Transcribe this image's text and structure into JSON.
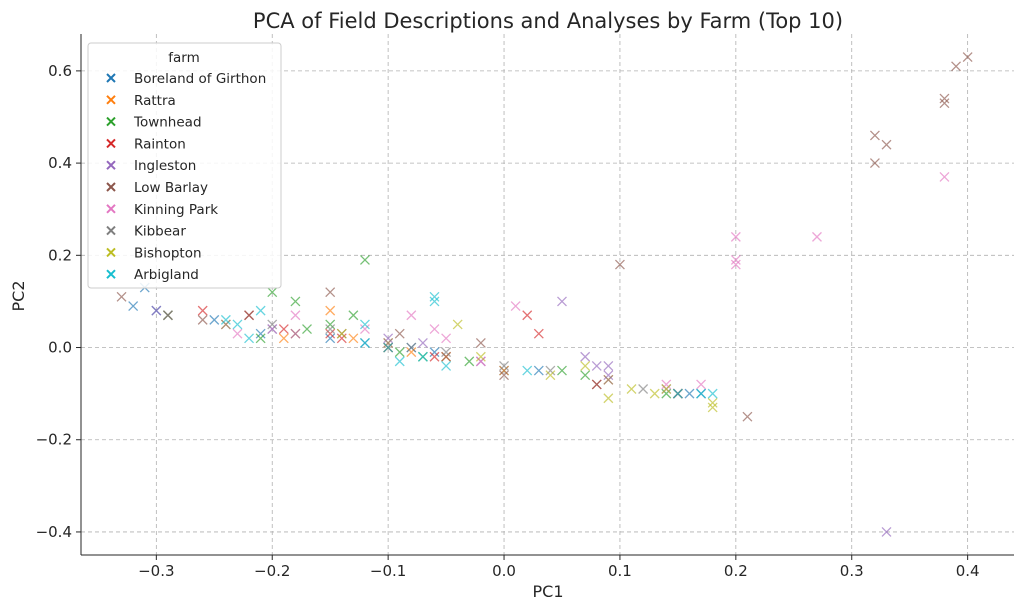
{
  "chart_data": {
    "type": "scatter",
    "title": "PCA of Field Descriptions and Analyses by Farm (Top 10)",
    "xlabel": "PC1",
    "ylabel": "PC2",
    "xlim": [
      -0.365,
      0.44
    ],
    "ylim": [
      -0.45,
      0.68
    ],
    "xticks": [
      -0.3,
      -0.2,
      -0.1,
      0.0,
      0.1,
      0.2,
      0.3,
      0.4
    ],
    "xtick_labels": [
      "−0.3",
      "−0.2",
      "−0.1",
      "0.0",
      "0.1",
      "0.2",
      "0.3",
      "0.4"
    ],
    "yticks": [
      -0.4,
      -0.2,
      0.0,
      0.2,
      0.4,
      0.6
    ],
    "ytick_labels": [
      "−0.4",
      "−0.2",
      "0.0",
      "0.2",
      "0.4",
      "0.6"
    ],
    "grid": true,
    "marker": "x",
    "legend": {
      "title": "farm",
      "placement": "upper-left"
    },
    "series": [
      {
        "name": "Boreland of Girthon",
        "color": "#1f77b4",
        "points": [
          [
            -0.31,
            0.13
          ],
          [
            -0.32,
            0.09
          ],
          [
            -0.3,
            0.08
          ],
          [
            -0.2,
            0.04
          ],
          [
            -0.15,
            0.02
          ],
          [
            -0.12,
            0.01
          ],
          [
            -0.08,
            0.0
          ],
          [
            -0.06,
            -0.01
          ],
          [
            0.0,
            -0.05
          ],
          [
            0.03,
            -0.05
          ],
          [
            0.15,
            -0.1
          ],
          [
            0.16,
            -0.1
          ],
          [
            0.17,
            -0.1
          ],
          [
            -0.25,
            0.06
          ],
          [
            -0.21,
            0.03
          ]
        ]
      },
      {
        "name": "Rattra",
        "color": "#ff7f0e",
        "points": [
          [
            -0.19,
            0.02
          ],
          [
            -0.15,
            0.08
          ],
          [
            -0.13,
            0.02
          ],
          [
            -0.1,
            0.01
          ],
          [
            -0.05,
            -0.02
          ],
          [
            0.0,
            -0.05
          ],
          [
            0.09,
            -0.07
          ],
          [
            0.15,
            -0.1
          ],
          [
            -0.24,
            0.05
          ],
          [
            -0.18,
            0.03
          ],
          [
            -0.08,
            -0.01
          ]
        ]
      },
      {
        "name": "Townhead",
        "color": "#2ca02c",
        "points": [
          [
            -0.2,
            0.12
          ],
          [
            -0.18,
            0.1
          ],
          [
            -0.12,
            0.19
          ],
          [
            -0.13,
            0.07
          ],
          [
            -0.17,
            0.04
          ],
          [
            -0.15,
            0.05
          ],
          [
            -0.1,
            0.0
          ],
          [
            -0.07,
            -0.02
          ],
          [
            -0.03,
            -0.03
          ],
          [
            0.05,
            -0.05
          ],
          [
            0.07,
            -0.06
          ],
          [
            0.14,
            -0.1
          ],
          [
            -0.29,
            0.07
          ],
          [
            -0.21,
            0.02
          ],
          [
            -0.09,
            -0.01
          ]
        ]
      },
      {
        "name": "Rainton",
        "color": "#d62728",
        "points": [
          [
            -0.26,
            0.08
          ],
          [
            -0.15,
            0.03
          ],
          [
            -0.14,
            0.02
          ],
          [
            -0.06,
            -0.02
          ],
          [
            0.02,
            0.07
          ],
          [
            0.03,
            0.03
          ],
          [
            0.08,
            -0.08
          ],
          [
            0.15,
            -0.1
          ],
          [
            -0.22,
            0.07
          ],
          [
            -0.19,
            0.04
          ],
          [
            -0.1,
            0.0
          ]
        ]
      },
      {
        "name": "Ingleston",
        "color": "#9467bd",
        "points": [
          [
            0.33,
            -0.4
          ],
          [
            0.05,
            0.1
          ],
          [
            0.07,
            -0.02
          ],
          [
            0.08,
            -0.04
          ],
          [
            0.09,
            -0.04
          ],
          [
            -0.07,
            0.01
          ],
          [
            -0.3,
            0.08
          ],
          [
            -0.1,
            0.02
          ],
          [
            -0.02,
            -0.03
          ],
          [
            0.14,
            -0.09
          ],
          [
            -0.18,
            0.03
          ],
          [
            0.09,
            -0.06
          ]
        ]
      },
      {
        "name": "Low Barlay",
        "color": "#8c564b",
        "points": [
          [
            0.4,
            0.63
          ],
          [
            0.39,
            0.61
          ],
          [
            0.38,
            0.54
          ],
          [
            0.38,
            0.53
          ],
          [
            0.33,
            0.44
          ],
          [
            0.32,
            0.46
          ],
          [
            0.32,
            0.4
          ],
          [
            0.1,
            0.18
          ],
          [
            0.21,
            -0.15
          ],
          [
            -0.29,
            0.07
          ],
          [
            -0.33,
            0.11
          ],
          [
            -0.15,
            0.12
          ],
          [
            -0.22,
            0.07
          ],
          [
            -0.09,
            0.03
          ],
          [
            -0.02,
            0.01
          ],
          [
            0.0,
            -0.06
          ],
          [
            0.08,
            -0.08
          ],
          [
            -0.26,
            0.06
          ],
          [
            -0.14,
            0.03
          ],
          [
            -0.05,
            -0.02
          ]
        ]
      },
      {
        "name": "Kinning Park",
        "color": "#e377c2",
        "points": [
          [
            0.38,
            0.37
          ],
          [
            0.27,
            0.24
          ],
          [
            0.2,
            0.24
          ],
          [
            0.2,
            0.19
          ],
          [
            0.2,
            0.18
          ],
          [
            0.01,
            0.09
          ],
          [
            -0.08,
            0.07
          ],
          [
            -0.06,
            0.04
          ],
          [
            -0.05,
            0.02
          ],
          [
            -0.12,
            0.04
          ],
          [
            -0.18,
            0.07
          ],
          [
            -0.23,
            0.03
          ],
          [
            0.17,
            -0.08
          ],
          [
            -0.02,
            -0.03
          ],
          [
            0.14,
            -0.08
          ],
          [
            -0.2,
            0.04
          ]
        ]
      },
      {
        "name": "Kibbear",
        "color": "#7f7f7f",
        "points": [
          [
            -0.29,
            0.07
          ],
          [
            -0.2,
            0.05
          ],
          [
            -0.15,
            0.04
          ],
          [
            -0.1,
            0.01
          ],
          [
            -0.05,
            -0.01
          ],
          [
            0.0,
            -0.04
          ],
          [
            0.04,
            -0.05
          ],
          [
            0.09,
            -0.07
          ],
          [
            0.12,
            -0.09
          ],
          [
            0.15,
            -0.1
          ],
          [
            -0.24,
            0.05
          ],
          [
            -0.08,
            0.0
          ]
        ]
      },
      {
        "name": "Bishopton",
        "color": "#bcbd22",
        "points": [
          [
            -0.04,
            0.05
          ],
          [
            0.09,
            -0.11
          ],
          [
            0.13,
            -0.1
          ],
          [
            0.14,
            -0.09
          ],
          [
            0.18,
            -0.12
          ],
          [
            0.18,
            -0.13
          ],
          [
            0.11,
            -0.09
          ],
          [
            -0.02,
            -0.02
          ],
          [
            -0.14,
            0.03
          ],
          [
            0.04,
            -0.06
          ],
          [
            0.07,
            -0.04
          ]
        ]
      },
      {
        "name": "Arbigland",
        "color": "#17becf",
        "points": [
          [
            -0.06,
            0.1
          ],
          [
            -0.06,
            0.11
          ],
          [
            -0.24,
            0.06
          ],
          [
            -0.23,
            0.05
          ],
          [
            -0.21,
            0.08
          ],
          [
            -0.12,
            0.01
          ],
          [
            -0.1,
            0.0
          ],
          [
            -0.09,
            -0.03
          ],
          [
            -0.07,
            -0.02
          ],
          [
            -0.05,
            -0.04
          ],
          [
            0.02,
            -0.05
          ],
          [
            0.15,
            -0.1
          ],
          [
            0.17,
            -0.1
          ],
          [
            0.18,
            -0.1
          ],
          [
            -0.12,
            0.05
          ],
          [
            -0.22,
            0.02
          ]
        ]
      }
    ]
  }
}
